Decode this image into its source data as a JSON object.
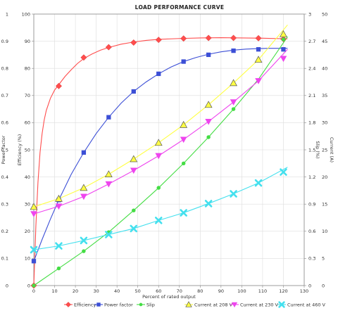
{
  "chart_data": {
    "type": "line",
    "title": "LOAD PERFORMANCE CURVE",
    "xlabel": "Percent of rated output",
    "x_ticks": [
      0,
      10,
      20,
      30,
      40,
      50,
      60,
      70,
      80,
      90,
      100,
      110,
      120,
      130
    ],
    "xlim": [
      0,
      130
    ],
    "axes": {
      "pf": {
        "label": "Power factor",
        "ticks": [
          "0",
          "0.1",
          "0.2",
          "0.3",
          "0.4",
          "0.5",
          "0.6",
          "0.7",
          "0.8",
          "0.9",
          "1"
        ],
        "range": [
          0,
          1
        ]
      },
      "eff": {
        "label": "Efficiency (%)",
        "ticks": [
          "0",
          "10",
          "20",
          "30",
          "40",
          "50",
          "60",
          "70",
          "80",
          "90",
          "100"
        ],
        "range": [
          0,
          100
        ]
      },
      "slip": {
        "label": "Slip (%)",
        "ticks": [
          "0",
          "0.3",
          "0.6",
          "0.9",
          "1.2",
          "1.5",
          "1.8",
          "2.1",
          "2.4",
          "2.7",
          "3"
        ],
        "range": [
          0,
          3
        ]
      },
      "current": {
        "label": "Current (A)",
        "ticks": [
          "0",
          "5",
          "10",
          "15",
          "20",
          "25",
          "30",
          "35",
          "40",
          "45",
          "50"
        ],
        "range": [
          0,
          50
        ]
      }
    },
    "grid": true,
    "legend_position": "bottom",
    "series": [
      {
        "name": "Efficiency",
        "axis": "eff",
        "color": "#ff4d4d",
        "marker": "diamond",
        "points": [
          [
            0,
            0
          ],
          [
            12,
            73.5
          ],
          [
            24,
            84
          ],
          [
            36,
            87.8
          ],
          [
            48,
            89.5
          ],
          [
            60,
            90.5
          ],
          [
            72,
            91
          ],
          [
            84,
            91.2
          ],
          [
            96,
            91.2
          ],
          [
            108,
            91.1
          ],
          [
            120,
            90.8
          ]
        ],
        "curve": [
          [
            0,
            0
          ],
          [
            1,
            22
          ],
          [
            2,
            38
          ],
          [
            3,
            49
          ],
          [
            4,
            56
          ],
          [
            5,
            61
          ],
          [
            6,
            64.5
          ],
          [
            8,
            69
          ],
          [
            10,
            72
          ],
          [
            12,
            74
          ],
          [
            15,
            77
          ],
          [
            18,
            79.5
          ],
          [
            21,
            81.8
          ],
          [
            24,
            83.6
          ],
          [
            28,
            85.3
          ],
          [
            32,
            86.7
          ],
          [
            36,
            87.7
          ],
          [
            42,
            88.9
          ],
          [
            48,
            89.7
          ],
          [
            54,
            90.3
          ],
          [
            60,
            90.7
          ],
          [
            70,
            91
          ],
          [
            80,
            91.2
          ],
          [
            90,
            91.3
          ],
          [
            100,
            91.2
          ],
          [
            110,
            91.1
          ],
          [
            122,
            90.9
          ]
        ]
      },
      {
        "name": "Power factor",
        "axis": "pf",
        "color": "#3c4fd6",
        "marker": "square",
        "points": [
          [
            0,
            0.09
          ],
          [
            12,
            0.315
          ],
          [
            24,
            0.49
          ],
          [
            36,
            0.62
          ],
          [
            48,
            0.715
          ],
          [
            60,
            0.78
          ],
          [
            72,
            0.825
          ],
          [
            84,
            0.85
          ],
          [
            96,
            0.865
          ],
          [
            108,
            0.87
          ],
          [
            120,
            0.87
          ]
        ],
        "curve": [
          [
            0,
            0.09
          ],
          [
            4,
            0.17
          ],
          [
            8,
            0.245
          ],
          [
            12,
            0.315
          ],
          [
            18,
            0.41
          ],
          [
            24,
            0.49
          ],
          [
            30,
            0.56
          ],
          [
            36,
            0.62
          ],
          [
            42,
            0.672
          ],
          [
            48,
            0.715
          ],
          [
            54,
            0.75
          ],
          [
            60,
            0.78
          ],
          [
            66,
            0.805
          ],
          [
            72,
            0.825
          ],
          [
            78,
            0.84
          ],
          [
            84,
            0.852
          ],
          [
            90,
            0.861
          ],
          [
            96,
            0.867
          ],
          [
            102,
            0.871
          ],
          [
            108,
            0.873
          ],
          [
            114,
            0.874
          ],
          [
            122,
            0.874
          ]
        ]
      },
      {
        "name": "Slip",
        "axis": "slip",
        "color": "#44dd44",
        "marker": "circle",
        "points": [
          [
            0,
            0
          ],
          [
            12,
            0.19
          ],
          [
            24,
            0.38
          ],
          [
            36,
            0.59
          ],
          [
            48,
            0.83
          ],
          [
            60,
            1.08
          ],
          [
            72,
            1.35
          ],
          [
            84,
            1.64
          ],
          [
            96,
            1.95
          ],
          [
            108,
            2.27
          ],
          [
            120,
            2.72
          ]
        ],
        "curve": [
          [
            0,
            0
          ],
          [
            12,
            0.19
          ],
          [
            24,
            0.38
          ],
          [
            36,
            0.59
          ],
          [
            48,
            0.83
          ],
          [
            60,
            1.08
          ],
          [
            72,
            1.35
          ],
          [
            84,
            1.64
          ],
          [
            96,
            1.95
          ],
          [
            108,
            2.28
          ],
          [
            122,
            2.75
          ]
        ]
      },
      {
        "name": "Current at 208 V",
        "axis": "current",
        "color": "#ffff44",
        "marker": "triangle",
        "points": [
          [
            0,
            14.5
          ],
          [
            12,
            16
          ],
          [
            24,
            18
          ],
          [
            36,
            20.5
          ],
          [
            48,
            23.3
          ],
          [
            60,
            26.3
          ],
          [
            72,
            29.6
          ],
          [
            84,
            33.3
          ],
          [
            96,
            37.3
          ],
          [
            108,
            41.6
          ],
          [
            120,
            46.3
          ]
        ],
        "curve": [
          [
            0,
            14.5
          ],
          [
            12,
            16
          ],
          [
            24,
            18
          ],
          [
            36,
            20.5
          ],
          [
            48,
            23.3
          ],
          [
            60,
            26.3
          ],
          [
            72,
            29.6
          ],
          [
            84,
            33.3
          ],
          [
            96,
            37.3
          ],
          [
            108,
            41.6
          ],
          [
            122,
            48
          ]
        ]
      },
      {
        "name": "Current at 230 V",
        "axis": "current",
        "color": "#ee44ee",
        "marker": "triangle-down",
        "points": [
          [
            0,
            13.2
          ],
          [
            12,
            14.6
          ],
          [
            24,
            16.4
          ],
          [
            36,
            18.7
          ],
          [
            48,
            21.2
          ],
          [
            60,
            23.9
          ],
          [
            72,
            26.9
          ],
          [
            84,
            30.2
          ],
          [
            96,
            33.8
          ],
          [
            108,
            37.7
          ],
          [
            120,
            41.8
          ]
        ],
        "curve": [
          [
            0,
            13.2
          ],
          [
            12,
            14.6
          ],
          [
            24,
            16.4
          ],
          [
            36,
            18.7
          ],
          [
            48,
            21.2
          ],
          [
            60,
            23.9
          ],
          [
            72,
            26.9
          ],
          [
            84,
            30.2
          ],
          [
            96,
            33.8
          ],
          [
            108,
            37.7
          ],
          [
            122,
            43.5
          ]
        ]
      },
      {
        "name": "Current at 460 V",
        "axis": "current",
        "color": "#44e0ee",
        "marker": "x",
        "points": [
          [
            0,
            6.6
          ],
          [
            12,
            7.3
          ],
          [
            24,
            8.3
          ],
          [
            36,
            9.4
          ],
          [
            48,
            10.5
          ],
          [
            60,
            12
          ],
          [
            72,
            13.4
          ],
          [
            84,
            15.1
          ],
          [
            96,
            16.9
          ],
          [
            108,
            18.9
          ],
          [
            120,
            20.9
          ]
        ],
        "curve": [
          [
            0,
            6.6
          ],
          [
            12,
            7.3
          ],
          [
            24,
            8.3
          ],
          [
            36,
            9.4
          ],
          [
            48,
            10.5
          ],
          [
            60,
            12
          ],
          [
            72,
            13.4
          ],
          [
            84,
            15.1
          ],
          [
            96,
            16.9
          ],
          [
            108,
            18.9
          ],
          [
            122,
            21.8
          ]
        ]
      }
    ]
  }
}
